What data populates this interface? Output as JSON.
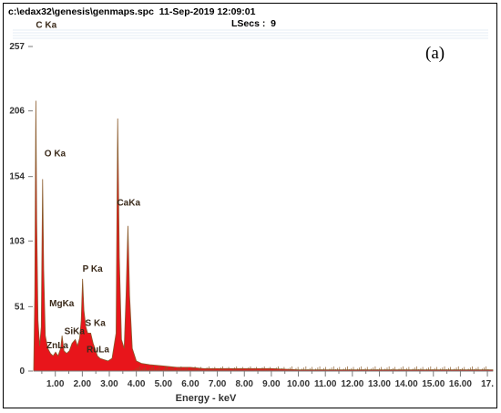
{
  "header": {
    "file_path": "c:\\edax32\\genesis\\genmaps.spc",
    "timestamp": "11-Sep-2019 12:09:01",
    "lsecs": "LSecs :  9"
  },
  "panel_label": "(a)",
  "colors": {
    "spectrum": "#e8151b",
    "spectrum_edge": "#8a5a2b",
    "axis": "#7a7a7a"
  },
  "chart_data": {
    "type": "area",
    "xlabel": "Energy - keV",
    "ylabel": "",
    "xlim": [
      0.2,
      17.2
    ],
    "ylim": [
      0,
      257
    ],
    "yticks": [
      0,
      51,
      103,
      154,
      206,
      257
    ],
    "xticks": [
      "1.00",
      "2.00",
      "3.00",
      "4.00",
      "5.00",
      "6.00",
      "7.00",
      "8.00",
      "9.00",
      "10.00",
      "11.00",
      "12.00",
      "13.00",
      "14.00",
      "15.00",
      "16.00",
      "17."
    ],
    "peaks": [
      {
        "label": "C Ka",
        "energy": 0.28,
        "counts": 214
      },
      {
        "label": "O Ka",
        "energy": 0.53,
        "counts": 152
      },
      {
        "label": "ZnLa",
        "energy": 1.01,
        "counts": 15
      },
      {
        "label": "MgKa",
        "energy": 1.25,
        "counts": 28
      },
      {
        "label": "SiKa",
        "energy": 1.74,
        "counts": 25
      },
      {
        "label": "P Ka",
        "energy": 2.01,
        "counts": 73
      },
      {
        "label": "S Ka",
        "energy": 2.31,
        "counts": 30
      },
      {
        "label": "RuLa",
        "energy": 2.56,
        "counts": 12
      },
      {
        "label": "CaKa",
        "energy": 3.69,
        "counts": 115
      }
    ],
    "spectrum": [
      [
        0.2,
        2
      ],
      [
        0.24,
        60
      ],
      [
        0.28,
        214
      ],
      [
        0.31,
        120
      ],
      [
        0.36,
        40
      ],
      [
        0.42,
        20
      ],
      [
        0.48,
        35
      ],
      [
        0.53,
        152
      ],
      [
        0.57,
        80
      ],
      [
        0.63,
        28
      ],
      [
        0.72,
        18
      ],
      [
        0.82,
        14
      ],
      [
        0.92,
        12
      ],
      [
        1.01,
        15
      ],
      [
        1.1,
        12
      ],
      [
        1.2,
        18
      ],
      [
        1.25,
        28
      ],
      [
        1.32,
        16
      ],
      [
        1.42,
        14
      ],
      [
        1.52,
        16
      ],
      [
        1.62,
        22
      ],
      [
        1.74,
        25
      ],
      [
        1.82,
        20
      ],
      [
        1.9,
        26
      ],
      [
        1.96,
        40
      ],
      [
        2.01,
        73
      ],
      [
        2.06,
        48
      ],
      [
        2.13,
        35
      ],
      [
        2.2,
        30
      ],
      [
        2.31,
        30
      ],
      [
        2.4,
        22
      ],
      [
        2.5,
        16
      ],
      [
        2.56,
        12
      ],
      [
        2.66,
        10
      ],
      [
        2.8,
        9
      ],
      [
        2.95,
        8
      ],
      [
        3.1,
        10
      ],
      [
        3.25,
        30
      ],
      [
        3.31,
        200
      ],
      [
        3.37,
        90
      ],
      [
        3.45,
        25
      ],
      [
        3.55,
        18
      ],
      [
        3.62,
        60
      ],
      [
        3.69,
        115
      ],
      [
        3.75,
        60
      ],
      [
        3.85,
        18
      ],
      [
        4.0,
        8
      ],
      [
        4.2,
        6
      ],
      [
        4.5,
        5
      ],
      [
        5.0,
        4
      ],
      [
        5.5,
        3
      ],
      [
        6.0,
        3
      ],
      [
        6.5,
        2
      ],
      [
        7.0,
        2
      ],
      [
        8.0,
        2
      ],
      [
        9.0,
        2
      ],
      [
        10.0,
        1
      ],
      [
        11.0,
        1
      ],
      [
        12.0,
        1
      ],
      [
        14.0,
        1
      ],
      [
        16.0,
        1
      ],
      [
        17.2,
        1
      ]
    ]
  }
}
